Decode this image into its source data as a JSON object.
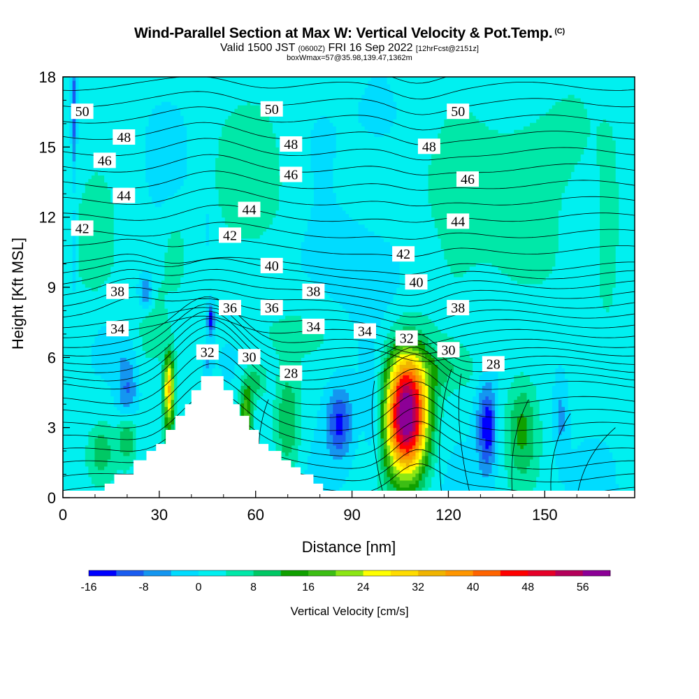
{
  "header": {
    "title": "Wind-Parallel Section at Max W: Vertical Velocity & Pot.Temp.",
    "copyright": "(C)",
    "valid_main1": "Valid 1500 JST",
    "valid_small1": "(0600Z)",
    "valid_main2": "FRI 16 Sep 2022",
    "valid_small2": "[12hrFcst@2151z]",
    "box_info": "boxWmax=57@35.98,139.47,1362m"
  },
  "colors": {
    "neg16": "#0000ff",
    "neg12": "#1a5cf0",
    "neg8": "#1496f0",
    "neg4": "#00dcff",
    "zero": "#00f0f0",
    "pos4": "#00e8a8",
    "pos8": "#00c864",
    "pos12": "#10a000",
    "pos16": "#3cbe14",
    "pos20": "#8ce614",
    "pos24": "#ffff00",
    "pos28": "#ffdc00",
    "pos32": "#f0b400",
    "pos36": "#ff9600",
    "pos40": "#ff6400",
    "pos44": "#ff0000",
    "pos48": "#e60028",
    "pos52": "#b4005a",
    "pos56": "#8c0096",
    "pos60": "#6e0078",
    "terrain": "#ffffff",
    "contour": "#000000"
  },
  "chart_data": {
    "type": "heatmap",
    "xlabel": "Distance [nm]",
    "ylabel": "Height [Kft MSL]",
    "xlim": [
      0,
      178
    ],
    "ylim": [
      0,
      18
    ],
    "xticks": [
      0,
      30,
      60,
      90,
      120,
      150
    ],
    "yticks": [
      0,
      3,
      6,
      9,
      12,
      15,
      18
    ],
    "colorbar": {
      "label": "Vertical Velocity [cm/s]",
      "ticks": [
        -16,
        -8,
        0,
        8,
        16,
        24,
        32,
        40,
        48,
        56
      ],
      "levels": [
        -16,
        -12,
        -8,
        -4,
        0,
        4,
        8,
        12,
        16,
        20,
        24,
        28,
        32,
        36,
        40,
        44,
        48,
        52,
        56
      ]
    },
    "terrain_profile": [
      [
        0,
        0.3
      ],
      [
        13,
        0.3
      ],
      [
        13,
        0.6
      ],
      [
        16,
        0.6
      ],
      [
        16,
        1.0
      ],
      [
        22,
        1.0
      ],
      [
        22,
        1.6
      ],
      [
        26,
        1.6
      ],
      [
        26,
        2.0
      ],
      [
        29,
        2.0
      ],
      [
        29,
        2.3
      ],
      [
        32,
        2.3
      ],
      [
        32,
        2.9
      ],
      [
        35,
        2.9
      ],
      [
        35,
        3.5
      ],
      [
        38,
        3.5
      ],
      [
        38,
        4.0
      ],
      [
        40,
        4.0
      ],
      [
        40,
        4.6
      ],
      [
        43,
        4.6
      ],
      [
        43,
        5.2
      ],
      [
        50,
        5.2
      ],
      [
        50,
        4.6
      ],
      [
        53,
        4.6
      ],
      [
        53,
        4.0
      ],
      [
        55,
        4.0
      ],
      [
        55,
        3.5
      ],
      [
        58,
        3.5
      ],
      [
        58,
        2.9
      ],
      [
        61,
        2.9
      ],
      [
        61,
        2.3
      ],
      [
        64,
        2.3
      ],
      [
        64,
        2.0
      ],
      [
        68,
        2.0
      ],
      [
        68,
        1.6
      ],
      [
        71,
        1.6
      ],
      [
        71,
        1.3
      ],
      [
        74,
        1.3
      ],
      [
        74,
        1.0
      ],
      [
        78,
        1.0
      ],
      [
        78,
        0.6
      ],
      [
        81,
        0.6
      ],
      [
        81,
        0.3
      ],
      [
        178,
        0.3
      ]
    ],
    "wmax_feature": {
      "x": 107,
      "height_kft": 3.5,
      "value_cms": 57
    },
    "theta_contour_labels": [
      {
        "x": 6,
        "y": 16.5,
        "text": "50"
      },
      {
        "x": 65,
        "y": 16.6,
        "text": "50"
      },
      {
        "x": 123,
        "y": 16.5,
        "text": "50"
      },
      {
        "x": 19,
        "y": 15.4,
        "text": "48"
      },
      {
        "x": 71,
        "y": 15.1,
        "text": "48"
      },
      {
        "x": 114,
        "y": 15.0,
        "text": "48"
      },
      {
        "x": 13,
        "y": 14.4,
        "text": "46"
      },
      {
        "x": 71,
        "y": 13.8,
        "text": "46"
      },
      {
        "x": 126,
        "y": 13.6,
        "text": "46"
      },
      {
        "x": 19,
        "y": 12.9,
        "text": "44"
      },
      {
        "x": 58,
        "y": 12.3,
        "text": "44"
      },
      {
        "x": 123,
        "y": 11.8,
        "text": "44"
      },
      {
        "x": 6,
        "y": 11.5,
        "text": "42"
      },
      {
        "x": 52,
        "y": 11.2,
        "text": "42"
      },
      {
        "x": 106,
        "y": 10.4,
        "text": "42"
      },
      {
        "x": 65,
        "y": 9.9,
        "text": "40"
      },
      {
        "x": 110,
        "y": 9.2,
        "text": "40"
      },
      {
        "x": 17,
        "y": 8.8,
        "text": "38"
      },
      {
        "x": 78,
        "y": 8.8,
        "text": "38"
      },
      {
        "x": 123,
        "y": 8.1,
        "text": "38"
      },
      {
        "x": 52,
        "y": 8.1,
        "text": "36"
      },
      {
        "x": 65,
        "y": 8.1,
        "text": "36"
      },
      {
        "x": 17,
        "y": 7.2,
        "text": "34"
      },
      {
        "x": 78,
        "y": 7.3,
        "text": "34"
      },
      {
        "x": 94,
        "y": 7.1,
        "text": "34"
      },
      {
        "x": 45,
        "y": 6.2,
        "text": "32"
      },
      {
        "x": 107,
        "y": 6.8,
        "text": "32"
      },
      {
        "x": 58,
        "y": 6.0,
        "text": "30"
      },
      {
        "x": 120,
        "y": 6.3,
        "text": "30"
      },
      {
        "x": 71,
        "y": 5.3,
        "text": "28"
      },
      {
        "x": 134,
        "y": 5.7,
        "text": "28"
      }
    ]
  }
}
